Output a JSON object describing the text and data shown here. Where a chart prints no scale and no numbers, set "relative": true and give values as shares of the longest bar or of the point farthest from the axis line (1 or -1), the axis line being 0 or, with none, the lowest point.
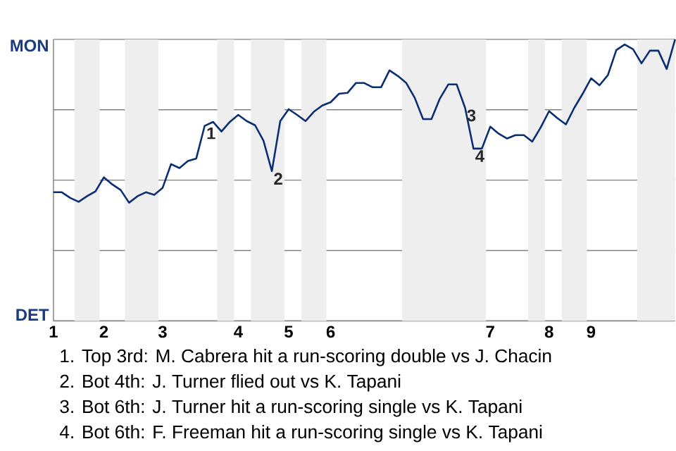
{
  "chart_data": {
    "type": "line",
    "relative": true,
    "categories": [
      "1",
      null,
      null,
      null,
      null,
      null,
      "2",
      null,
      null,
      null,
      null,
      null,
      null,
      "3",
      null,
      null,
      null,
      null,
      null,
      null,
      null,
      null,
      "4",
      null,
      null,
      null,
      null,
      null,
      "5",
      null,
      null,
      null,
      null,
      "6",
      null,
      null,
      null,
      null,
      null,
      null,
      null,
      null,
      null,
      null,
      null,
      null,
      null,
      null,
      null,
      null,
      null,
      null,
      "7",
      null,
      null,
      null,
      null,
      null,
      null,
      "8",
      null,
      null,
      null,
      null,
      "9",
      null,
      null,
      null,
      null,
      null,
      null,
      null,
      null,
      null,
      null
    ],
    "series": [
      {
        "color": "#0b2d72",
        "values": [
          0.457,
          0.457,
          0.437,
          0.423,
          0.443,
          0.46,
          0.51,
          0.485,
          0.465,
          0.42,
          0.443,
          0.457,
          0.448,
          0.473,
          0.557,
          0.543,
          0.568,
          0.577,
          0.693,
          0.707,
          0.673,
          0.707,
          0.732,
          0.71,
          0.695,
          0.64,
          0.532,
          0.71,
          0.752,
          0.732,
          0.71,
          0.743,
          0.765,
          0.777,
          0.807,
          0.81,
          0.845,
          0.845,
          0.83,
          0.83,
          0.89,
          0.87,
          0.845,
          0.793,
          0.717,
          0.717,
          0.79,
          0.84,
          0.84,
          0.757,
          0.612,
          0.612,
          0.69,
          0.665,
          0.648,
          0.66,
          0.66,
          0.637,
          0.687,
          0.745,
          0.72,
          0.698,
          0.757,
          0.807,
          0.862,
          0.837,
          0.873,
          0.962,
          0.982,
          0.965,
          0.915,
          0.96,
          0.96,
          0.895,
          1
        ]
      }
    ],
    "grid": "y",
    "marker": "none",
    "line_style": "solid",
    "annotations": [
      {
        "text": "1",
        "y": 0.693
      },
      {
        "text": "2",
        "y": 0.532
      },
      {
        "text": "3",
        "y": 0.757
      },
      {
        "text": "4",
        "y": 0.612
      },
      "MON",
      "DET",
      "1. Top 3rd: M. Cabrera hit a run-scoring double vs J. Chacin",
      "2. Bot 4th: J. Turner flied out vs K. Tapani",
      "3. Bot 6th: J. Turner hit a run-scoring single vs K. Tapani",
      "4. Bot 6th: F. Freeman hit a run-scoring single vs K. Tapani"
    ]
  }
}
